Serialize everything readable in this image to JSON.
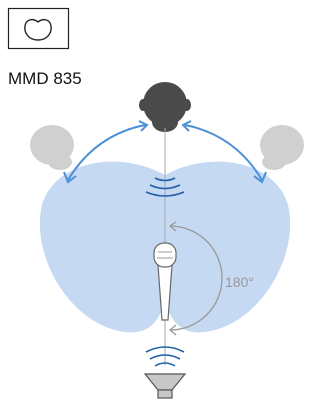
{
  "title": "MMD 835",
  "angle_label": "180°"
}
